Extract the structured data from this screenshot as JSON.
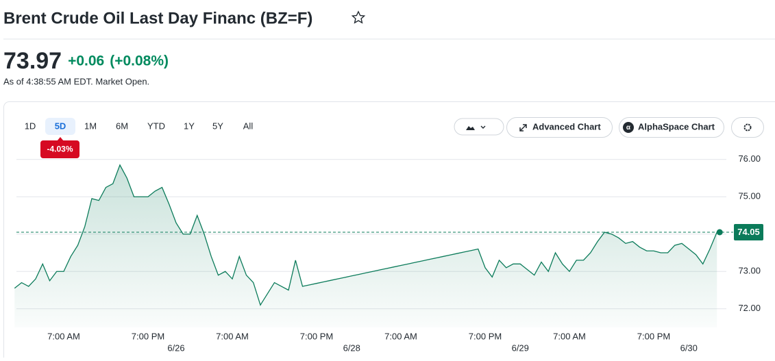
{
  "header": {
    "title": "Brent Crude Oil Last Day Financ (BZ=F)"
  },
  "quote": {
    "price": "73.97",
    "change": "+0.06",
    "change_percent": "(+0.08%)",
    "as_of": "As of 4:38:55 AM EDT. Market Open."
  },
  "toolbar": {
    "ranges": [
      "1D",
      "5D",
      "1M",
      "6M",
      "YTD",
      "1Y",
      "5Y",
      "All"
    ],
    "selected_range": 1,
    "range_change": "-4.03%",
    "buttons": [
      "Advanced Chart",
      "AlphaSpace Chart"
    ]
  },
  "chart_data": {
    "type": "line",
    "color": "#0b7b5a",
    "categories": [
      null,
      null,
      null,
      null,
      null,
      null,
      null,
      "7:00 AM",
      null,
      null,
      null,
      null,
      null,
      null,
      null,
      null,
      null,
      null,
      null,
      "7:00 PM",
      null,
      null,
      null,
      null,
      null,
      null,
      null,
      null,
      null,
      null,
      null,
      "7:00 AM",
      null,
      null,
      null,
      null,
      null,
      null,
      null,
      null,
      null,
      null,
      null,
      "7:00 PM",
      null,
      null,
      null,
      null,
      null,
      null,
      null,
      null,
      null,
      null,
      null,
      "7:00 AM",
      null,
      null,
      null,
      null,
      null,
      null,
      null,
      null,
      null,
      null,
      null,
      "7:00 PM",
      null,
      null,
      null,
      null,
      null,
      null,
      null,
      null,
      null,
      null,
      null,
      "7:00 AM",
      null,
      null,
      null,
      null,
      null,
      null,
      null,
      null,
      null,
      null,
      null,
      "7:00 PM",
      null,
      null,
      null,
      null,
      null,
      null,
      null,
      null,
      null
    ],
    "dates": [
      null,
      null,
      null,
      null,
      null,
      null,
      null,
      null,
      null,
      null,
      null,
      null,
      null,
      null,
      null,
      null,
      null,
      null,
      null,
      null,
      null,
      null,
      null,
      "6/26",
      null,
      null,
      null,
      null,
      null,
      null,
      null,
      null,
      null,
      null,
      null,
      null,
      null,
      null,
      null,
      null,
      null,
      null,
      null,
      null,
      null,
      null,
      null,
      null,
      "6/28",
      null,
      null,
      null,
      null,
      null,
      null,
      null,
      null,
      null,
      null,
      null,
      null,
      null,
      null,
      null,
      null,
      null,
      null,
      null,
      null,
      null,
      null,
      null,
      "6/29",
      null,
      null,
      null,
      null,
      null,
      null,
      null,
      null,
      null,
      null,
      null,
      null,
      null,
      null,
      null,
      null,
      null,
      null,
      null,
      null,
      null,
      null,
      null,
      "6/30",
      null,
      null,
      null,
      null
    ],
    "values": [
      72.55,
      72.7,
      72.6,
      72.8,
      73.2,
      72.75,
      73.0,
      73.0,
      73.4,
      73.7,
      74.2,
      74.95,
      74.9,
      75.25,
      75.35,
      75.85,
      75.5,
      75.0,
      75.0,
      75.0,
      75.15,
      75.25,
      74.8,
      74.3,
      74.0,
      74.0,
      74.5,
      74.0,
      73.4,
      72.9,
      73.0,
      72.8,
      73.4,
      72.9,
      72.7,
      72.1,
      72.4,
      72.7,
      72.6,
      72.5,
      73.3,
      72.6,
      72.64,
      72.68,
      72.72,
      72.76,
      72.8,
      72.84,
      72.88,
      72.92,
      72.96,
      73.0,
      73.04,
      73.08,
      73.12,
      73.16,
      73.2,
      73.24,
      73.28,
      73.32,
      73.36,
      73.4,
      73.44,
      73.48,
      73.52,
      73.56,
      73.6,
      73.1,
      72.85,
      73.3,
      73.1,
      73.2,
      73.2,
      73.05,
      72.9,
      73.25,
      73.0,
      73.5,
      73.2,
      73.0,
      73.3,
      73.3,
      73.5,
      73.8,
      74.05,
      74.0,
      73.9,
      73.75,
      73.8,
      73.65,
      73.55,
      73.55,
      73.5,
      73.5,
      73.7,
      73.75,
      73.6,
      73.45,
      73.2,
      73.6,
      74.05
    ],
    "current_value": 74.05,
    "ylim": [
      71.5,
      76.6
    ],
    "yticks": [
      {
        "value": 72,
        "label": "72.00"
      },
      {
        "value": 73,
        "label": "73.00"
      },
      {
        "value": 74,
        "label": "74.00"
      },
      {
        "value": 75,
        "label": "75.00"
      },
      {
        "value": 76,
        "label": "76.00"
      }
    ],
    "grid": true
  }
}
